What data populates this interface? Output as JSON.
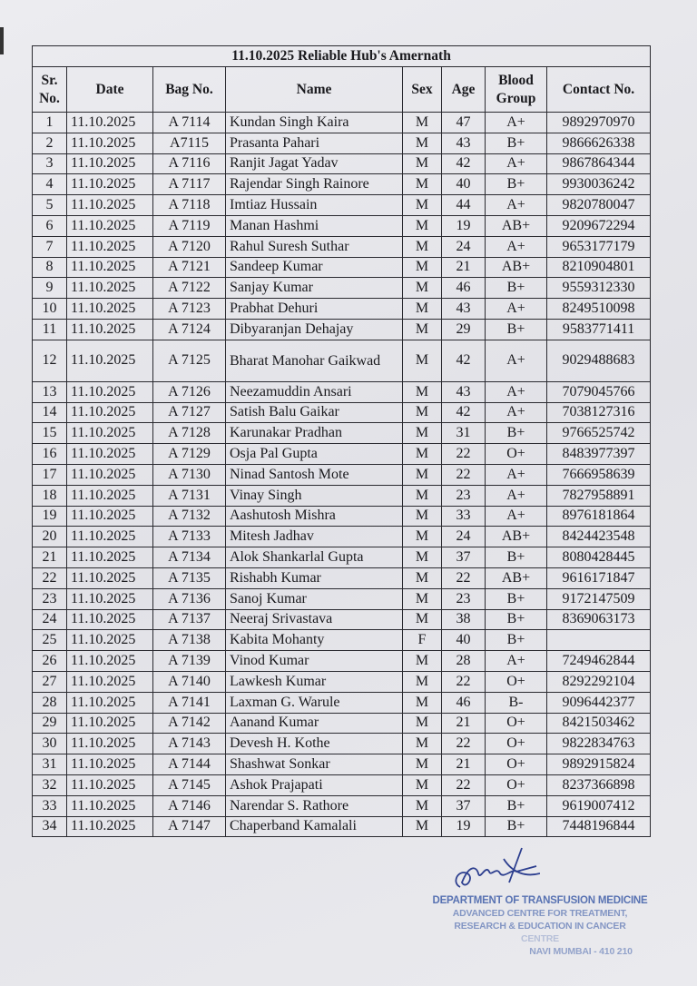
{
  "title": "11.10.2025 Reliable Hub's Amernath",
  "headers": [
    "Sr. No.",
    "Date",
    "Bag No.",
    "Name",
    "Sex",
    "Age",
    "Blood Group",
    "Contact No."
  ],
  "rows": [
    [
      "1",
      "11.10.2025",
      "A 7114",
      "Kundan Singh Kaira",
      "M",
      "47",
      "A+",
      "9892970970"
    ],
    [
      "2",
      "11.10.2025",
      "A7115",
      "Prasanta Pahari",
      "M",
      "43",
      "B+",
      "9866626338"
    ],
    [
      "3",
      "11.10.2025",
      "A 7116",
      "Ranjit Jagat Yadav",
      "M",
      "42",
      "A+",
      "9867864344"
    ],
    [
      "4",
      "11.10.2025",
      "A 7117",
      "Rajendar Singh Rainore",
      "M",
      "40",
      "B+",
      "9930036242"
    ],
    [
      "5",
      "11.10.2025",
      "A 7118",
      "Imtiaz Hussain",
      "M",
      "44",
      "A+",
      "9820780047"
    ],
    [
      "6",
      "11.10.2025",
      "A 7119",
      "Manan Hashmi",
      "M",
      "19",
      "AB+",
      "9209672294"
    ],
    [
      "7",
      "11.10.2025",
      "A 7120",
      "Rahul Suresh Suthar",
      "M",
      "24",
      "A+",
      "9653177179"
    ],
    [
      "8",
      "11.10.2025",
      "A 7121",
      "Sandeep Kumar",
      "M",
      "21",
      "AB+",
      "8210904801"
    ],
    [
      "9",
      "11.10.2025",
      "A 7122",
      "Sanjay Kumar",
      "M",
      "46",
      "B+",
      "9559312330"
    ],
    [
      "10",
      "11.10.2025",
      "A 7123",
      "Prabhat Dehuri",
      "M",
      "43",
      "A+",
      "8249510098"
    ],
    [
      "11",
      "11.10.2025",
      "A 7124",
      "Dibyaranjan Dehajay",
      "M",
      "29",
      "B+",
      "9583771411"
    ],
    [
      "12",
      "11.10.2025",
      "A 7125",
      "Bharat Manohar Gaikwad",
      "M",
      "42",
      "A+",
      "9029488683"
    ],
    [
      "13",
      "11.10.2025",
      "A 7126",
      "Neezamuddin Ansari",
      "M",
      "43",
      "A+",
      "7079045766"
    ],
    [
      "14",
      "11.10.2025",
      "A 7127",
      "Satish Balu Gaikar",
      "M",
      "42",
      "A+",
      "7038127316"
    ],
    [
      "15",
      "11.10.2025",
      "A 7128",
      "Karunakar Pradhan",
      "M",
      "31",
      "B+",
      "9766525742"
    ],
    [
      "16",
      "11.10.2025",
      "A 7129",
      "Osja Pal Gupta",
      "M",
      "22",
      "O+",
      "8483977397"
    ],
    [
      "17",
      "11.10.2025",
      "A 7130",
      "Ninad Santosh Mote",
      "M",
      "22",
      "A+",
      "7666958639"
    ],
    [
      "18",
      "11.10.2025",
      "A 7131",
      "Vinay Singh",
      "M",
      "23",
      "A+",
      "7827958891"
    ],
    [
      "19",
      "11.10.2025",
      "A 7132",
      "Aashutosh Mishra",
      "M",
      "33",
      "A+",
      "8976181864"
    ],
    [
      "20",
      "11.10.2025",
      "A 7133",
      "Mitesh Jadhav",
      "M",
      "24",
      "AB+",
      "8424423548"
    ],
    [
      "21",
      "11.10.2025",
      "A 7134",
      "Alok Shankarlal Gupta",
      "M",
      "37",
      "B+",
      "8080428445"
    ],
    [
      "22",
      "11.10.2025",
      "A 7135",
      "Rishabh Kumar",
      "M",
      "22",
      "AB+",
      "9616171847"
    ],
    [
      "23",
      "11.10.2025",
      "A 7136",
      "Sanoj Kumar",
      "M",
      "23",
      "B+",
      "9172147509"
    ],
    [
      "24",
      "11.10.2025",
      "A 7137",
      "Neeraj Srivastava",
      "M",
      "38",
      "B+",
      "8369063173"
    ],
    [
      "25",
      "11.10.2025",
      "A 7138",
      "Kabita Mohanty",
      "F",
      "40",
      "B+",
      ""
    ],
    [
      "26",
      "11.10.2025",
      "A 7139",
      "Vinod Kumar",
      "M",
      "28",
      "A+",
      "7249462844"
    ],
    [
      "27",
      "11.10.2025",
      "A 7140",
      "Lawkesh Kumar",
      "M",
      "22",
      "O+",
      "8292292104"
    ],
    [
      "28",
      "11.10.2025",
      "A 7141",
      "Laxman G. Warule",
      "M",
      "46",
      "B-",
      "9096442377"
    ],
    [
      "29",
      "11.10.2025",
      "A 7142",
      "Aanand Kumar",
      "M",
      "21",
      "O+",
      "8421503462"
    ],
    [
      "30",
      "11.10.2025",
      "A 7143",
      "Devesh H. Kothe",
      "M",
      "22",
      "O+",
      "9822834763"
    ],
    [
      "31",
      "11.10.2025",
      "A 7144",
      "Shashwat Sonkar",
      "M",
      "21",
      "O+",
      "9892915824"
    ],
    [
      "32",
      "11.10.2025",
      "A 7145",
      "Ashok Prajapati",
      "M",
      "22",
      "O+",
      "8237366898"
    ],
    [
      "33",
      "11.10.2025",
      "A 7146",
      "Narendar S. Rathore",
      "M",
      "37",
      "B+",
      "9619007412"
    ],
    [
      "34",
      "11.10.2025",
      "A 7147",
      "Chaperband Kamalali",
      "M",
      "19",
      "B+",
      "7448196844"
    ]
  ],
  "stamp": [
    "DEPARTMENT OF TRANSFUSION MEDICINE",
    "ADVANCED CENTRE FOR TREATMENT,",
    "RESEARCH & EDUCATION IN CANCER",
    "CENTRE",
    "NAVI MUMBAI - 410 210"
  ],
  "colors": {
    "ink": "#1a1a1e",
    "stamp": "#3f5ea8",
    "paper": "#e6e6ea"
  }
}
